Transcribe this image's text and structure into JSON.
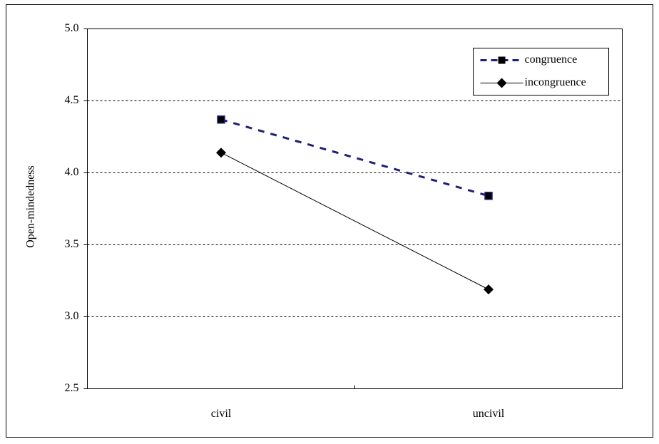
{
  "chart_data": {
    "type": "line",
    "y_label": "Open-mindedness",
    "categories": [
      "civil",
      "uncivil"
    ],
    "series": [
      {
        "name": "congruence",
        "color": "#20207a",
        "dash": true,
        "marker": "square",
        "values": [
          4.37,
          3.84
        ]
      },
      {
        "name": "incongruence",
        "color": "#000000",
        "dash": false,
        "marker": "diamond",
        "values": [
          4.14,
          3.19
        ]
      }
    ],
    "ylim": [
      2.5,
      5.0
    ],
    "yticks": [
      {
        "value": 2.5,
        "label": "2.5"
      },
      {
        "value": 3.0,
        "label": "3.0"
      },
      {
        "value": 3.5,
        "label": "3.5"
      },
      {
        "value": 4.0,
        "label": "4.0"
      },
      {
        "value": 4.5,
        "label": "4.5"
      },
      {
        "value": 5.0,
        "label": "5.0"
      }
    ],
    "grid": true,
    "legend": "upper right"
  }
}
